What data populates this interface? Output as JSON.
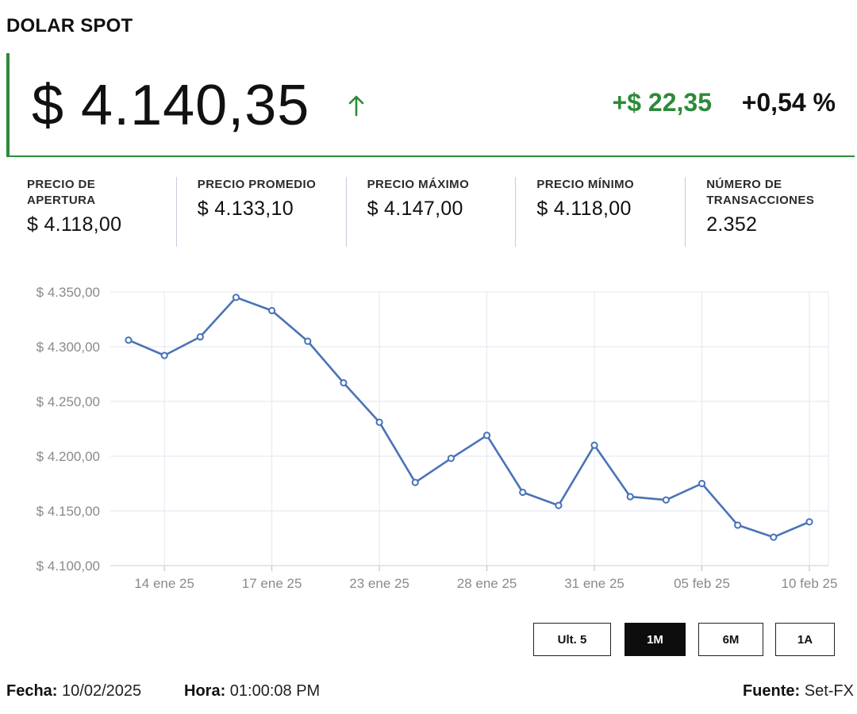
{
  "header": {
    "title": "DOLAR SPOT"
  },
  "price": {
    "value": "$ 4.140,35",
    "direction": "up",
    "change": "+$ 22,35",
    "change_pct": "+0,54 %"
  },
  "colors": {
    "accent_green": "#2d8a3a",
    "line_blue": "#4a73b8",
    "grid": "#e3e6ef"
  },
  "stats": [
    {
      "label": "PRECIO DE APERTURA",
      "value": "$ 4.118,00"
    },
    {
      "label": "PRECIO PROMEDIO",
      "value": "$ 4.133,10"
    },
    {
      "label": "PRECIO MÁXIMO",
      "value": "$ 4.147,00"
    },
    {
      "label": "PRECIO MÍNIMO",
      "value": "$ 4.118,00"
    },
    {
      "label": "NÚMERO DE TRANSACCIONES",
      "value": "2.352"
    }
  ],
  "chart_data": {
    "type": "line",
    "y_ticks": [
      "$ 4.350,00",
      "$ 4.300,00",
      "$ 4.250,00",
      "$ 4.200,00",
      "$ 4.150,00",
      "$ 4.100,00"
    ],
    "ylim": [
      4100,
      4350
    ],
    "x_tick_labels": [
      "14 ene 25",
      "17 ene 25",
      "23 ene 25",
      "28 ene 25",
      "31 ene 25",
      "05 feb 25",
      "10 feb 25"
    ],
    "grid": true,
    "series": [
      {
        "values": [
          4306,
          4292,
          4309,
          4345,
          4333,
          4305,
          4267,
          4231,
          4176,
          4198,
          4219,
          4167,
          4155,
          4210,
          4163,
          4160,
          4175,
          4137,
          4126,
          4140
        ]
      }
    ]
  },
  "range_buttons": [
    {
      "label": "Ult. 5",
      "active": false
    },
    {
      "label": "1M",
      "active": true
    },
    {
      "label": "6M",
      "active": false
    },
    {
      "label": "1A",
      "active": false
    }
  ],
  "footer": {
    "date_label": "Fecha:",
    "date_value": "10/02/2025",
    "time_label": "Hora:",
    "time_value": "01:00:08 PM",
    "source_label": "Fuente:",
    "source_value": "Set-FX"
  }
}
